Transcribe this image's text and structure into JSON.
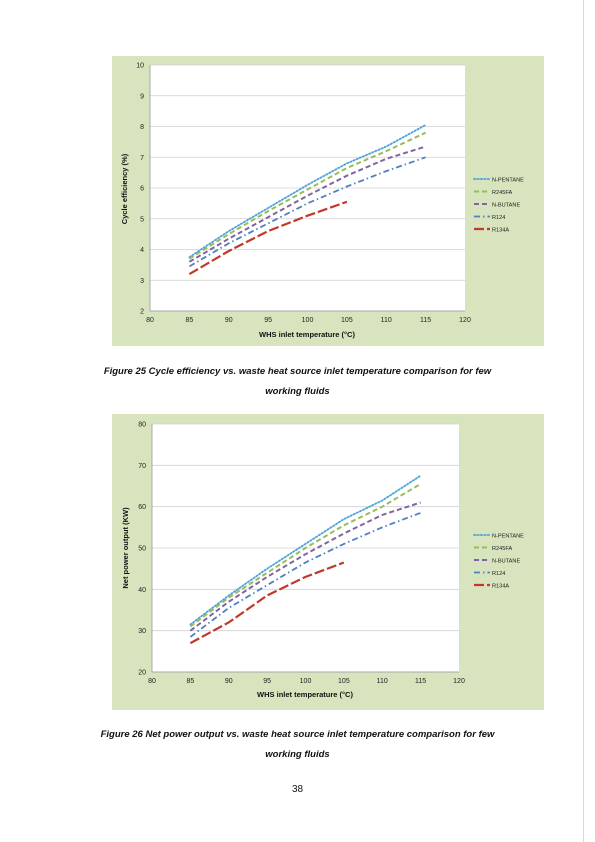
{
  "charts": [
    {
      "ylabel": "Cycle efficiency (%)",
      "xlabel": "WHS inlet temperature (°C)",
      "x_ticks": [
        "80",
        "85",
        "90",
        "95",
        "100",
        "105",
        "110",
        "115",
        "120"
      ],
      "y_ticks": [
        "2",
        "3",
        "4",
        "5",
        "6",
        "7",
        "8",
        "9",
        "10"
      ],
      "legend": [
        "N-PENTANE",
        "R245FA",
        "N-BUTANE",
        "R124",
        "R134A"
      ],
      "caption_line1": "Figure 25 Cycle efficiency vs. waste heat source inlet temperature comparison for few",
      "caption_line2": "working fluids"
    },
    {
      "ylabel": "Net power output (KW)",
      "xlabel": "WHS inlet temperature (°C)",
      "x_ticks": [
        "80",
        "85",
        "90",
        "95",
        "100",
        "105",
        "110",
        "115",
        "120"
      ],
      "y_ticks": [
        "20",
        "30",
        "40",
        "50",
        "60",
        "70",
        "80"
      ],
      "legend": [
        "N-PENTANE",
        "R245FA",
        "N-BUTANE",
        "R124",
        "R134A"
      ],
      "caption_line1": "Figure 26 Net power output vs. waste heat source inlet temperature comparison for few",
      "caption_line2": "working fluids"
    }
  ],
  "page_number": "38",
  "chart_data": [
    {
      "type": "line",
      "xlabel": "WHS inlet temperature (°C)",
      "ylabel": "Cycle efficiency (%)",
      "xlim": [
        80,
        120
      ],
      "ylim": [
        2,
        10
      ],
      "grid": true,
      "legend_position": "right",
      "series": [
        {
          "name": "N-PENTANE",
          "color": "#4aa3d9",
          "style": "dotted",
          "x": [
            85,
            90,
            95,
            100,
            105,
            110,
            115
          ],
          "y": [
            3.75,
            4.6,
            5.35,
            6.1,
            6.8,
            7.35,
            8.05
          ]
        },
        {
          "name": "R245FA",
          "color": "#9bbb59",
          "style": "dashed",
          "x": [
            85,
            90,
            95,
            100,
            105,
            110,
            115
          ],
          "y": [
            3.7,
            4.5,
            5.25,
            5.95,
            6.65,
            7.2,
            7.8
          ]
        },
        {
          "name": "N-BUTANE",
          "color": "#8064a2",
          "style": "dashed",
          "x": [
            85,
            90,
            95,
            100,
            105,
            110,
            115
          ],
          "y": [
            3.6,
            4.35,
            5.05,
            5.75,
            6.4,
            6.95,
            7.35
          ]
        },
        {
          "name": "R124",
          "color": "#4f81bd",
          "style": "dashdot",
          "x": [
            85,
            90,
            95,
            100,
            105,
            110,
            115
          ],
          "y": [
            3.45,
            4.2,
            4.85,
            5.5,
            6.05,
            6.55,
            7.0
          ]
        },
        {
          "name": "R134A",
          "color": "#c0392b",
          "style": "longdash",
          "x": [
            85,
            90,
            95,
            100,
            105
          ],
          "y": [
            3.2,
            3.95,
            4.6,
            5.1,
            5.55
          ]
        }
      ]
    },
    {
      "type": "line",
      "xlabel": "WHS inlet temperature (°C)",
      "ylabel": "Net power output (KW)",
      "xlim": [
        80,
        120
      ],
      "ylim": [
        20,
        80
      ],
      "grid": true,
      "legend_position": "right",
      "series": [
        {
          "name": "N-PENTANE",
          "color": "#4aa3d9",
          "style": "dotted",
          "x": [
            85,
            90,
            95,
            100,
            105,
            110,
            115
          ],
          "y": [
            31.5,
            38.5,
            45,
            51,
            57,
            61.5,
            67.5
          ]
        },
        {
          "name": "R245FA",
          "color": "#9bbb59",
          "style": "dashed",
          "x": [
            85,
            90,
            95,
            100,
            105,
            110,
            115
          ],
          "y": [
            31,
            38,
            44,
            50,
            55.5,
            60,
            65.5
          ]
        },
        {
          "name": "N-BUTANE",
          "color": "#8064a2",
          "style": "dashed",
          "x": [
            85,
            90,
            95,
            100,
            105,
            110,
            115
          ],
          "y": [
            30,
            37,
            43,
            48.5,
            53.5,
            58,
            61
          ]
        },
        {
          "name": "R124",
          "color": "#4f81bd",
          "style": "dashdot",
          "x": [
            85,
            90,
            95,
            100,
            105,
            110,
            115
          ],
          "y": [
            28.5,
            35.5,
            41,
            46.5,
            51,
            55,
            58.5
          ]
        },
        {
          "name": "R134A",
          "color": "#c0392b",
          "style": "longdash",
          "x": [
            85,
            90,
            95,
            100,
            105
          ],
          "y": [
            27,
            32,
            38.5,
            43,
            46.5
          ]
        }
      ]
    }
  ]
}
